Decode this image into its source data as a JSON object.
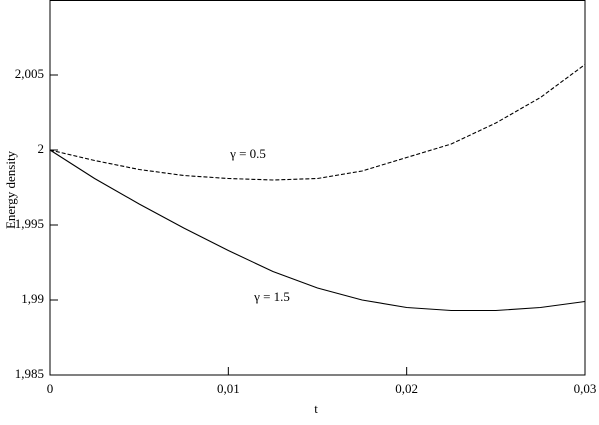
{
  "chart_data": {
    "type": "line",
    "x_label": "t",
    "y_label": "Energy density",
    "x": [
      0,
      0.0025,
      0.005,
      0.0075,
      0.01,
      0.0125,
      0.015,
      0.0175,
      0.02,
      0.0225,
      0.025,
      0.0275,
      0.03
    ],
    "series": [
      {
        "name": "γ = 0.5",
        "color": "#000000",
        "dash": true,
        "values": [
          2,
          1.9993,
          1.9987,
          1.9983,
          1.9981,
          1.998,
          1.9981,
          1.9986,
          1.9995,
          2.0004,
          2.0018,
          2.0035,
          2.0057
        ]
      },
      {
        "name": "γ = 1.5",
        "color": "#000000",
        "dash": false,
        "values": [
          2,
          1.9981,
          1.9964,
          1.9948,
          1.9933,
          1.9919,
          1.9908,
          1.99,
          1.9895,
          1.9893,
          1.9893,
          1.9895,
          1.9899
        ]
      }
    ],
    "xlim": [
      0,
      0.03
    ],
    "xticks": [
      0,
      {
        "value": 0.01,
        "label": "0,01"
      },
      {
        "value": 0.02,
        "label": "0,02"
      },
      {
        "value": 0.03,
        "label": "0,03"
      }
    ],
    "ylim": [
      1.985,
      2.01
    ],
    "yticks": [
      {
        "value": 1.985,
        "label": "1,985"
      },
      {
        "value": 1.99,
        "label": "1,99"
      },
      {
        "value": 1.995,
        "label": "1,995"
      },
      2,
      {
        "value": 2.005,
        "label": "2,005"
      }
    ],
    "grid": false
  }
}
